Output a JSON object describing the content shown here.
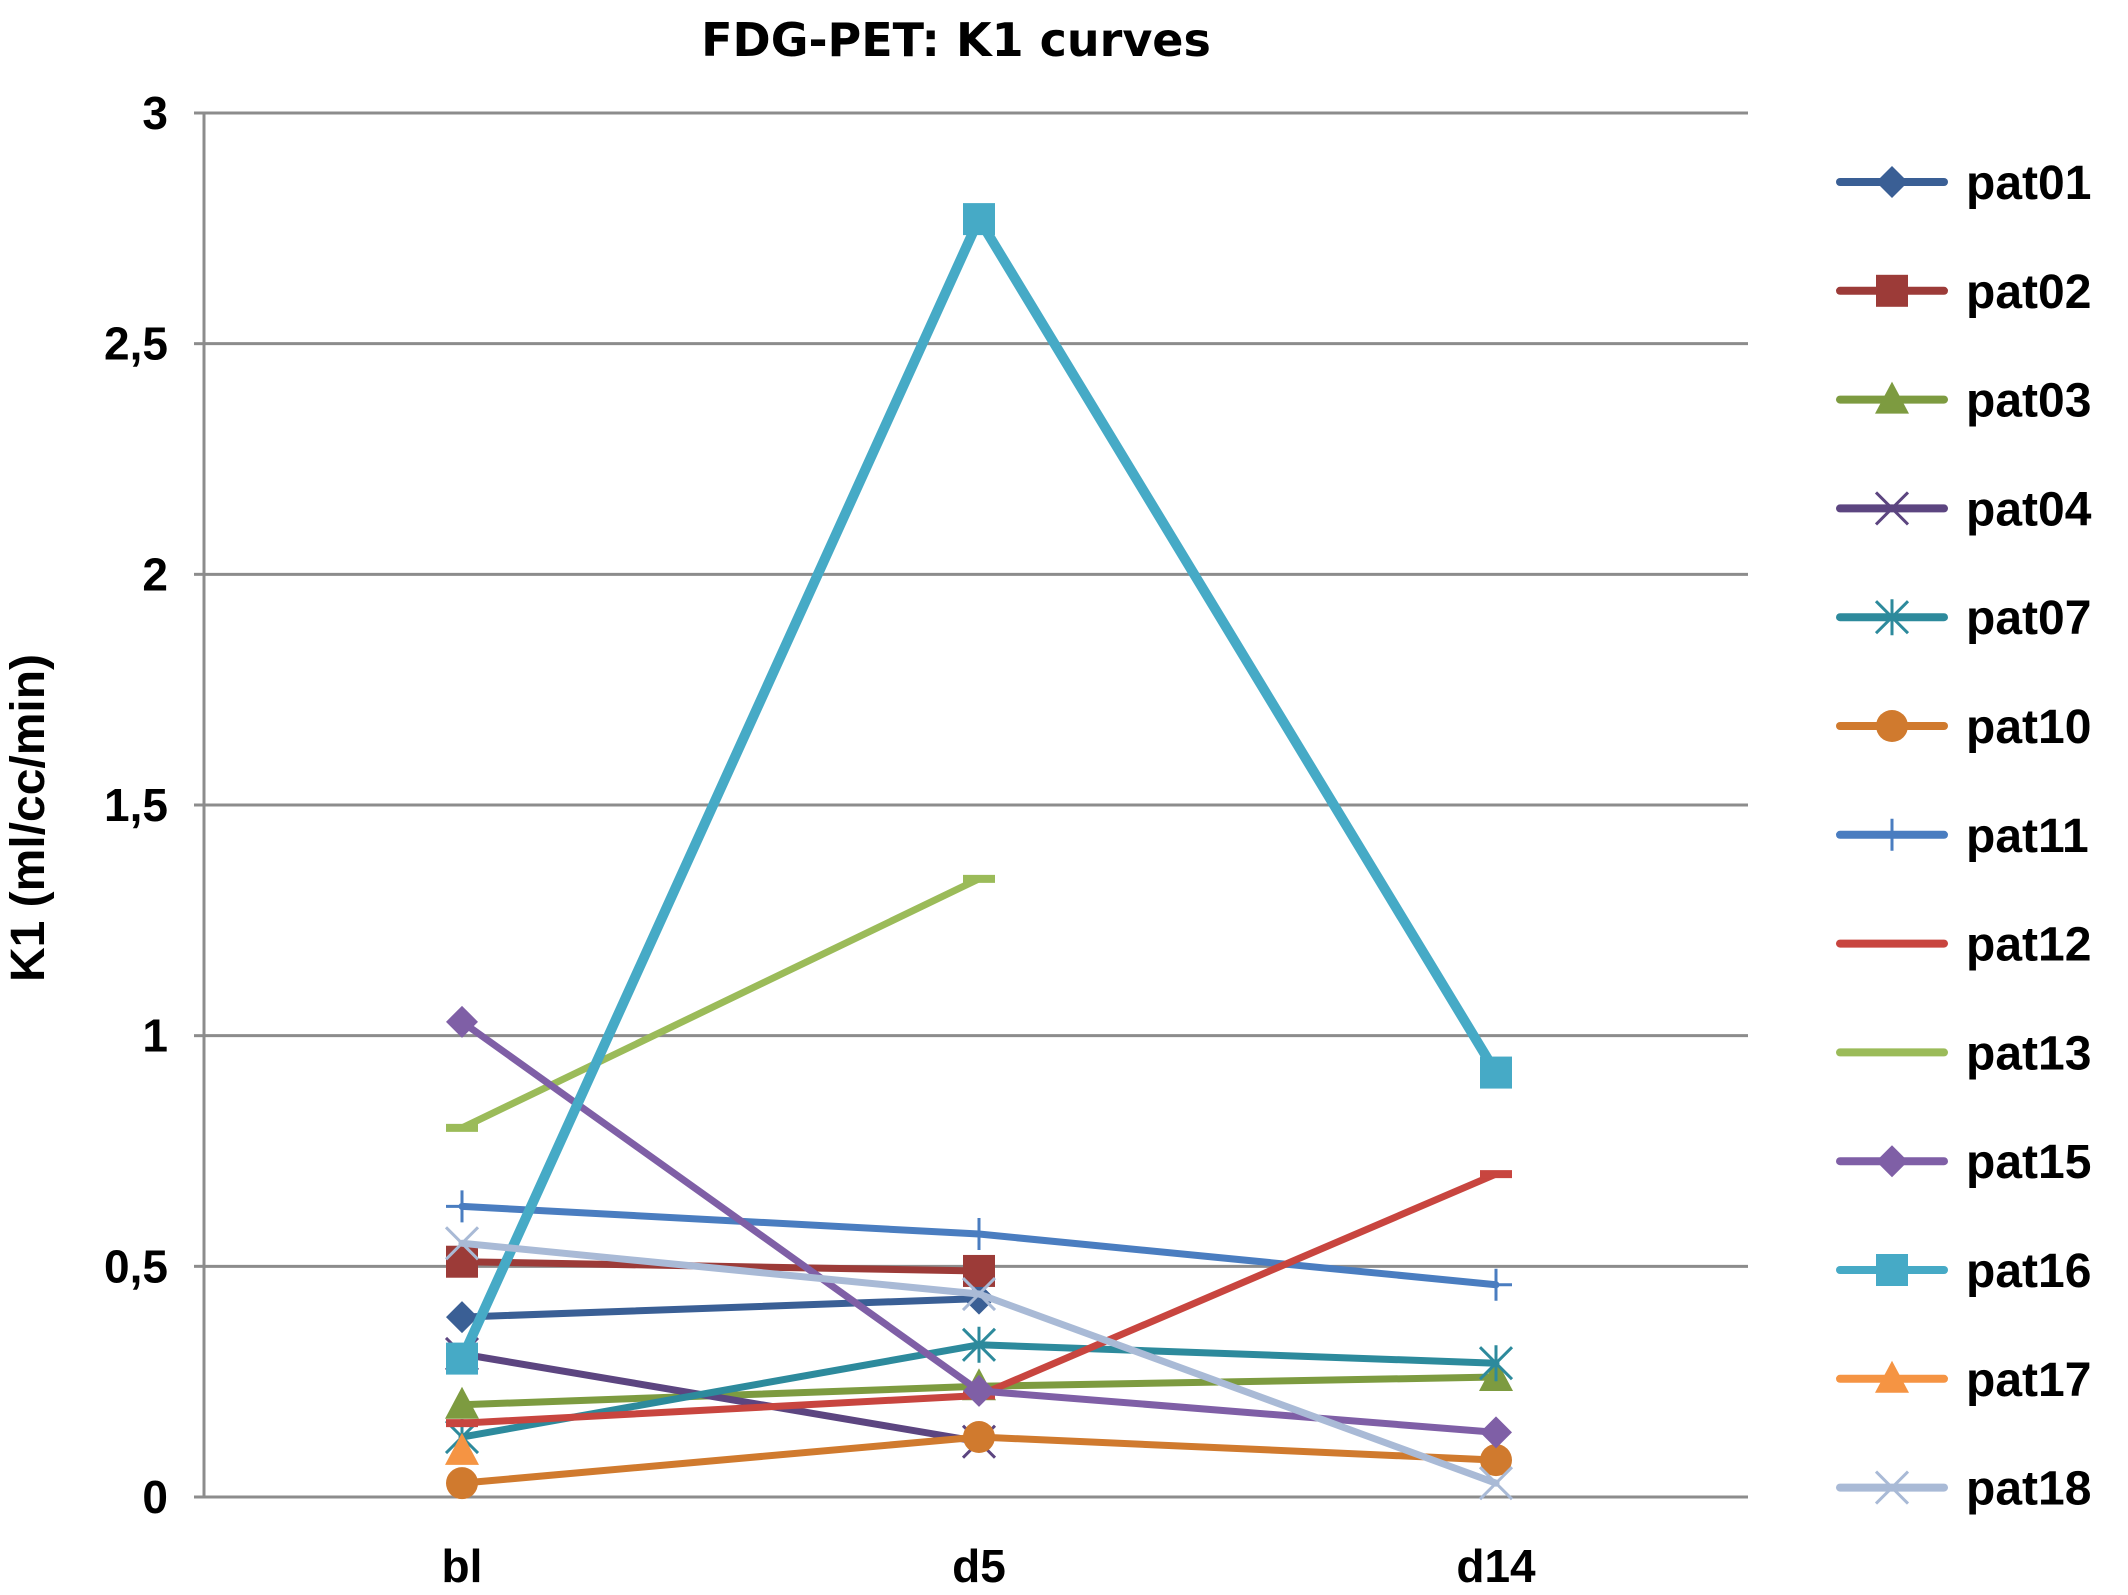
{
  "chart_data": {
    "type": "line",
    "title": "FDG-PET: K1 curves",
    "xlabel": "",
    "ylabel": "K1 (ml/cc/min)",
    "categories": [
      "bl",
      "d5",
      "d14"
    ],
    "ylim": [
      0,
      3
    ],
    "yticks": [
      0,
      0.5,
      1,
      1.5,
      2,
      2.5,
      3
    ],
    "ytick_labels": [
      "0",
      "0,5",
      "1",
      "1,5",
      "2",
      "2,5",
      "3"
    ],
    "grid": "horizontal",
    "legend_position": "right",
    "series": [
      {
        "name": "pat01",
        "color": "#3A5F95",
        "marker": "diamond",
        "values": [
          0.39,
          0.43,
          null
        ]
      },
      {
        "name": "pat02",
        "color": "#9C3B38",
        "marker": "square",
        "values": [
          0.51,
          0.49,
          null
        ]
      },
      {
        "name": "pat03",
        "color": "#7D9B40",
        "marker": "triangle",
        "values": [
          0.2,
          0.24,
          0.26
        ]
      },
      {
        "name": "pat04",
        "color": "#5C4580",
        "marker": "x",
        "values": [
          0.31,
          0.12,
          null
        ]
      },
      {
        "name": "pat07",
        "color": "#2D8A9C",
        "marker": "star",
        "values": [
          0.13,
          0.33,
          0.29
        ]
      },
      {
        "name": "pat10",
        "color": "#D07A2E",
        "marker": "circle",
        "values": [
          0.03,
          0.13,
          0.08
        ]
      },
      {
        "name": "pat11",
        "color": "#4A7DC0",
        "marker": "plus",
        "values": [
          0.63,
          0.57,
          0.46
        ]
      },
      {
        "name": "pat12",
        "color": "#C8453F",
        "marker": "dash",
        "values": [
          0.16,
          0.22,
          0.7
        ]
      },
      {
        "name": "pat13",
        "color": "#9BBB59",
        "marker": "dash",
        "values": [
          0.8,
          1.34,
          null
        ]
      },
      {
        "name": "pat15",
        "color": "#7F5FA6",
        "marker": "diamond",
        "values": [
          1.03,
          0.23,
          0.14
        ]
      },
      {
        "name": "pat16",
        "color": "#46AAC6",
        "marker": "square",
        "values": [
          0.3,
          2.77,
          0.92
        ]
      },
      {
        "name": "pat17",
        "color": "#F59443",
        "marker": "triangle",
        "values": [
          0.1,
          null,
          null
        ]
      },
      {
        "name": "pat18",
        "color": "#A9BAD6",
        "marker": "x",
        "values": [
          0.55,
          0.44,
          0.03
        ]
      }
    ]
  }
}
